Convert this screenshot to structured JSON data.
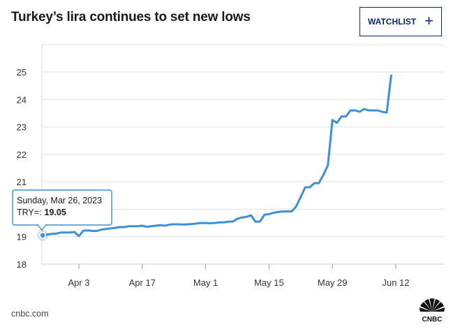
{
  "header": {
    "title": "Turkey’s lira continues to set new lows"
  },
  "watchlist": {
    "label": "WATCHLIST",
    "icon": "plus-icon"
  },
  "tooltip": {
    "date": "Sunday, Mar 26, 2023",
    "label": "TRY=:",
    "value": "19.05"
  },
  "footer": {
    "source": "cnbc.com",
    "logo": "cnbc-peacock-logo",
    "logo_text": "CNBC"
  },
  "colors": {
    "line": "#3d8fd6",
    "grid": "#dddddd",
    "accent": "#0a2a6b"
  },
  "chart_data": {
    "type": "line",
    "title": "Turkey’s lira continues to set new lows",
    "series_name": "TRY=",
    "xlabel": "",
    "ylabel": "",
    "ylim": [
      18,
      25.8
    ],
    "yticks": [
      18,
      19,
      20,
      21,
      22,
      23,
      24,
      25
    ],
    "xlim": [
      0,
      86
    ],
    "xticks": [
      {
        "label": "Apr 3",
        "day": 8
      },
      {
        "label": "Apr 17",
        "day": 22
      },
      {
        "label": "May 1",
        "day": 36
      },
      {
        "label": "May 15",
        "day": 50
      },
      {
        "label": "May 29",
        "day": 64
      },
      {
        "label": "Jun 12",
        "day": 78
      }
    ],
    "x_unit": "days since Mar 26, 2023",
    "points": [
      [
        0,
        19.05
      ],
      [
        1,
        19.08
      ],
      [
        2,
        19.1
      ],
      [
        3,
        19.11
      ],
      [
        4,
        19.15
      ],
      [
        5,
        19.15
      ],
      [
        6,
        19.15
      ],
      [
        7,
        19.17
      ],
      [
        8,
        19.02
      ],
      [
        9,
        19.22
      ],
      [
        10,
        19.23
      ],
      [
        11,
        19.21
      ],
      [
        12,
        19.21
      ],
      [
        13,
        19.26
      ],
      [
        14,
        19.28
      ],
      [
        15,
        19.3
      ],
      [
        16,
        19.32
      ],
      [
        17,
        19.35
      ],
      [
        18,
        19.35
      ],
      [
        19,
        19.38
      ],
      [
        20,
        19.38
      ],
      [
        21,
        19.38
      ],
      [
        22,
        19.4
      ],
      [
        23,
        19.36
      ],
      [
        24,
        19.38
      ],
      [
        25,
        19.4
      ],
      [
        26,
        19.42
      ],
      [
        27,
        19.4
      ],
      [
        28,
        19.44
      ],
      [
        29,
        19.45
      ],
      [
        30,
        19.45
      ],
      [
        31,
        19.44
      ],
      [
        32,
        19.45
      ],
      [
        33,
        19.46
      ],
      [
        34,
        19.48
      ],
      [
        35,
        19.5
      ],
      [
        36,
        19.5
      ],
      [
        37,
        19.49
      ],
      [
        38,
        19.5
      ],
      [
        39,
        19.52
      ],
      [
        40,
        19.52
      ],
      [
        41,
        19.55
      ],
      [
        42,
        19.55
      ],
      [
        43,
        19.65
      ],
      [
        44,
        19.7
      ],
      [
        45,
        19.72
      ],
      [
        46,
        19.78
      ],
      [
        47,
        19.55
      ],
      [
        48,
        19.55
      ],
      [
        49,
        19.8
      ],
      [
        50,
        19.82
      ],
      [
        51,
        19.87
      ],
      [
        52,
        19.9
      ],
      [
        53,
        19.92
      ],
      [
        54,
        19.92
      ],
      [
        55,
        19.92
      ],
      [
        56,
        20.1
      ],
      [
        57,
        20.45
      ],
      [
        58,
        20.8
      ],
      [
        59,
        20.8
      ],
      [
        60,
        20.95
      ],
      [
        61,
        20.95
      ],
      [
        62,
        21.25
      ],
      [
        63,
        21.6
      ],
      [
        64,
        23.25
      ],
      [
        65,
        23.15
      ],
      [
        66,
        23.38
      ],
      [
        67,
        23.38
      ],
      [
        68,
        23.6
      ],
      [
        69,
        23.6
      ],
      [
        70,
        23.55
      ],
      [
        71,
        23.65
      ],
      [
        72,
        23.6
      ],
      [
        73,
        23.6
      ],
      [
        74,
        23.6
      ],
      [
        75,
        23.55
      ],
      [
        76,
        23.52
      ],
      [
        77,
        24.9
      ]
    ]
  }
}
